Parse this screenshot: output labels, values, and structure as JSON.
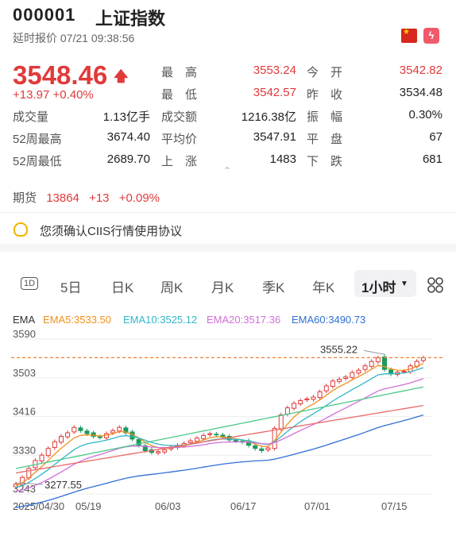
{
  "header": {
    "code": "000001",
    "name": "上证指数",
    "quote_time": "延时报价 07/21 09:38:56",
    "flag_icon": "china-flag-icon",
    "bolt_icon": "lightning-icon"
  },
  "quote": {
    "price": "3548.46",
    "change": "+13.97",
    "change_pct": "+0.40%",
    "up_color": "#e03a3a"
  },
  "stats": {
    "high_label": "最　高",
    "high": "3553.24",
    "open_label": "今　开",
    "open": "3542.82",
    "low_label": "最　低",
    "low": "3542.57",
    "prev_label": "昨　收",
    "prev": "3534.48",
    "vol_label": "成交量",
    "vol": "1.13亿手",
    "amt_label": "成交额",
    "amt": "1216.38亿",
    "amp_label": "振　幅",
    "amp": "0.30%",
    "h52_label": "52周最高",
    "h52": "3674.40",
    "avg_label": "平均价",
    "avg": "3547.91",
    "flat_label": "平　盘",
    "flat": "67",
    "l52_label": "52周最低",
    "l52": "2689.70",
    "up_label": "上　涨",
    "up": "1483",
    "down_label": "下　跌",
    "down": "681"
  },
  "futures": {
    "label": "期货",
    "value": "13864",
    "change": "+13",
    "pct": "+0.09%"
  },
  "notice": {
    "text": "您须确认CIIS行情使用协议"
  },
  "tabs": {
    "t1": "1D",
    "t2": "5日",
    "t3": "日K",
    "t4": "周K",
    "t5": "月K",
    "t6": "季K",
    "t7": "年K",
    "t8": "1小时",
    "grid_icon": "grid-icon"
  },
  "ema": {
    "label": "EMA",
    "e5": "EMA5:3533.50",
    "e10": "EMA10:3525.12",
    "e20": "EMA20:3517.36",
    "e60": "EMA60:3490.73",
    "c5": "#f0901e",
    "c10": "#2fb7c8",
    "c20": "#d070d8",
    "c60": "#2f6fd8"
  },
  "chart_data": {
    "type": "candlestick",
    "y_ticks": [
      "3590",
      "3503",
      "3416",
      "3330",
      "3243"
    ],
    "x_ticks": [
      "2025/04/30",
      "05/19",
      "06/03",
      "06/17",
      "07/01",
      "07/15"
    ],
    "ylim": [
      3243,
      3590
    ],
    "max_label": "3555.22",
    "min_label": "3277.55",
    "last_price": 3548.46,
    "close_series": [
      3265,
      3280,
      3300,
      3318,
      3330,
      3345,
      3360,
      3372,
      3380,
      3392,
      3385,
      3378,
      3372,
      3370,
      3378,
      3385,
      3392,
      3380,
      3366,
      3352,
      3340,
      3336,
      3338,
      3342,
      3348,
      3352,
      3356,
      3362,
      3368,
      3374,
      3378,
      3376,
      3370,
      3364,
      3362,
      3360,
      3352,
      3345,
      3340,
      3346,
      3390,
      3420,
      3436,
      3446,
      3452,
      3456,
      3460,
      3472,
      3485,
      3496,
      3500,
      3505,
      3515,
      3520,
      3530,
      3540,
      3548,
      3522,
      3512,
      3516,
      3518,
      3530,
      3540,
      3548
    ]
  }
}
